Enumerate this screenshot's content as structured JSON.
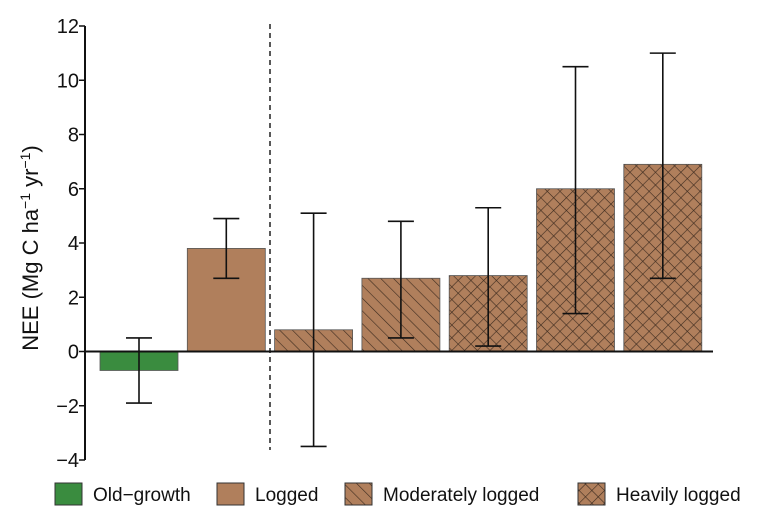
{
  "chart_data": {
    "type": "bar",
    "title": "",
    "xlabel": "",
    "ylabel": {
      "prefix": "NEE (Mg C ha",
      "sup1": "−1",
      "mid": " yr",
      "sup2": "−1",
      "suffix": ")"
    },
    "ylim": [
      -4,
      12
    ],
    "yticks": [
      -4,
      -2,
      0,
      2,
      4,
      6,
      8,
      10,
      12
    ],
    "ytick_labels": [
      "−4",
      "−2",
      "0",
      "2",
      "4",
      "6",
      "8",
      "10",
      "12"
    ],
    "bars": [
      {
        "group": "Old-growth",
        "value": -0.7,
        "err_low": -1.9,
        "err_high": 0.5
      },
      {
        "group": "Logged",
        "value": 3.8,
        "err_low": 2.7,
        "err_high": 4.9
      },
      {
        "group": "Moderately logged",
        "value": 0.8,
        "err_low": -3.5,
        "err_high": 5.1
      },
      {
        "group": "Moderately logged",
        "value": 2.7,
        "err_low": 0.5,
        "err_high": 4.8
      },
      {
        "group": "Heavily logged",
        "value": 2.8,
        "err_low": 0.2,
        "err_high": 5.3
      },
      {
        "group": "Heavily logged",
        "value": 6.0,
        "err_low": 1.4,
        "err_high": 10.5
      },
      {
        "group": "Heavily logged",
        "value": 6.9,
        "err_low": 2.7,
        "err_high": 11.0
      }
    ],
    "legend": {
      "position": "bottom",
      "entries": [
        {
          "label": "Old−growth",
          "fill": "#3a8c3f",
          "pattern": "none"
        },
        {
          "label": "Logged",
          "fill": "#b07f5c",
          "pattern": "none"
        },
        {
          "label": "Moderately logged",
          "fill": "#b07f5c",
          "pattern": "diagonal"
        },
        {
          "label": "Heavily logged",
          "fill": "#b07f5c",
          "pattern": "crosshatch"
        }
      ]
    },
    "divider": "dashed vertical line between Logged and the logging-intensity bars",
    "grid": false,
    "colors": {
      "old_growth": "#3a8c3f",
      "logged": "#b07f5c",
      "axis": "#111111"
    }
  }
}
